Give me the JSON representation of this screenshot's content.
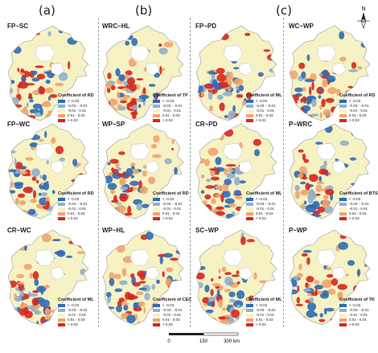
{
  "group_labels": [
    "(a)",
    "(b)",
    "(c)"
  ],
  "north_label": "N",
  "scale": {
    "ticks": [
      "0",
      "150",
      "300 km"
    ]
  },
  "legend_classes": [
    {
      "label": "< -0.03",
      "color": "#2d6bb8"
    },
    {
      "label": "-0.03 - -0.01",
      "color": "#8fb0cf"
    },
    {
      "label": "-0.01 - 0.01",
      "color": "#f6f2c4"
    },
    {
      "label": "0.01 - 0.03",
      "color": "#f0a46a"
    },
    {
      "label": "> 0.03",
      "color": "#d7261e"
    }
  ],
  "panels": [
    {
      "title": "FP~SC",
      "legend": "Coefficient of RD"
    },
    {
      "title": "WRC~HL",
      "legend": "Coefficient of TP"
    },
    {
      "title": "FP~PD",
      "legend": "Coefficient of ML"
    },
    {
      "title": "WC~WP",
      "legend": "Coefficient of RD"
    },
    {
      "title": "FP~WC",
      "legend": "Coefficient of RD"
    },
    {
      "title": "WP~SP",
      "legend": "Coefficient of RD"
    },
    {
      "title": "CR~PD",
      "legend": "Coefficient of ML"
    },
    {
      "title": "P~WRC",
      "legend": "Coefficient of BTSND"
    },
    {
      "title": "CR~WC",
      "legend": "Coefficient of ML"
    },
    {
      "title": "WP~HL",
      "legend": "Coefficient of CEC"
    },
    {
      "title": "SC~WP",
      "legend": "Coefficient of ML"
    },
    {
      "title": "P~WP",
      "legend": "Coefficient of TK"
    }
  ]
}
